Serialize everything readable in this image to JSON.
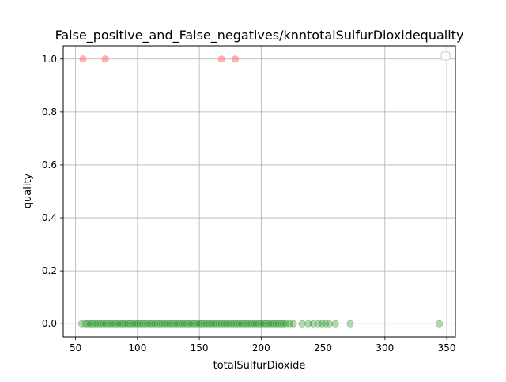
{
  "chart_data": {
    "type": "scatter",
    "title": "False_positive_and_False_negatives/knntotalSulfurDioxidequality",
    "xlabel": "totalSulfurDioxide",
    "ylabel": "quality",
    "xlim": [
      40,
      357
    ],
    "ylim": [
      -0.05,
      1.05
    ],
    "xticks": [
      "50",
      "100",
      "150",
      "200",
      "250",
      "300",
      "350"
    ],
    "yticks": [
      "0.0",
      "0.2",
      "0.4",
      "0.6",
      "0.8",
      "1.0"
    ],
    "grid": true,
    "legend": {
      "placement": "top-right",
      "entries": []
    },
    "series": [
      {
        "color": "#ff6b6b",
        "alpha": 0.5,
        "points": [
          [
            56,
            1
          ],
          [
            74,
            1
          ],
          [
            168,
            1
          ],
          [
            179,
            1
          ]
        ]
      },
      {
        "color": "#008000",
        "alpha": 0.3,
        "points": [
          [
            55,
            0
          ],
          [
            58,
            0
          ],
          [
            60,
            0
          ],
          [
            62,
            0
          ],
          [
            64,
            0
          ],
          [
            66,
            0
          ],
          [
            68,
            0
          ],
          [
            70,
            0
          ],
          [
            72,
            0
          ],
          [
            74,
            0
          ],
          [
            76,
            0
          ],
          [
            78,
            0
          ],
          [
            80,
            0
          ],
          [
            82,
            0
          ],
          [
            84,
            0
          ],
          [
            86,
            0
          ],
          [
            88,
            0
          ],
          [
            90,
            0
          ],
          [
            92,
            0
          ],
          [
            94,
            0
          ],
          [
            96,
            0
          ],
          [
            98,
            0
          ],
          [
            100,
            0
          ],
          [
            102,
            0
          ],
          [
            104,
            0
          ],
          [
            106,
            0
          ],
          [
            108,
            0
          ],
          [
            110,
            0
          ],
          [
            112,
            0
          ],
          [
            114,
            0
          ],
          [
            116,
            0
          ],
          [
            118,
            0
          ],
          [
            120,
            0
          ],
          [
            122,
            0
          ],
          [
            124,
            0
          ],
          [
            126,
            0
          ],
          [
            128,
            0
          ],
          [
            130,
            0
          ],
          [
            132,
            0
          ],
          [
            134,
            0
          ],
          [
            136,
            0
          ],
          [
            138,
            0
          ],
          [
            140,
            0
          ],
          [
            142,
            0
          ],
          [
            144,
            0
          ],
          [
            146,
            0
          ],
          [
            148,
            0
          ],
          [
            150,
            0
          ],
          [
            152,
            0
          ],
          [
            154,
            0
          ],
          [
            156,
            0
          ],
          [
            158,
            0
          ],
          [
            160,
            0
          ],
          [
            162,
            0
          ],
          [
            164,
            0
          ],
          [
            166,
            0
          ],
          [
            168,
            0
          ],
          [
            170,
            0
          ],
          [
            172,
            0
          ],
          [
            174,
            0
          ],
          [
            176,
            0
          ],
          [
            178,
            0
          ],
          [
            180,
            0
          ],
          [
            182,
            0
          ],
          [
            184,
            0
          ],
          [
            186,
            0
          ],
          [
            188,
            0
          ],
          [
            190,
            0
          ],
          [
            192,
            0
          ],
          [
            194,
            0
          ],
          [
            196,
            0
          ],
          [
            198,
            0
          ],
          [
            200,
            0
          ],
          [
            202,
            0
          ],
          [
            204,
            0
          ],
          [
            206,
            0
          ],
          [
            208,
            0
          ],
          [
            210,
            0
          ],
          [
            212,
            0
          ],
          [
            214,
            0
          ],
          [
            216,
            0
          ],
          [
            218,
            0
          ],
          [
            220,
            0
          ],
          [
            223,
            0
          ],
          [
            226,
            0
          ],
          [
            233,
            0
          ],
          [
            238,
            0
          ],
          [
            242,
            0
          ],
          [
            246,
            0
          ],
          [
            249,
            0
          ],
          [
            252,
            0
          ],
          [
            255,
            0
          ],
          [
            260,
            0
          ],
          [
            272,
            0
          ],
          [
            344,
            0
          ]
        ]
      }
    ]
  }
}
